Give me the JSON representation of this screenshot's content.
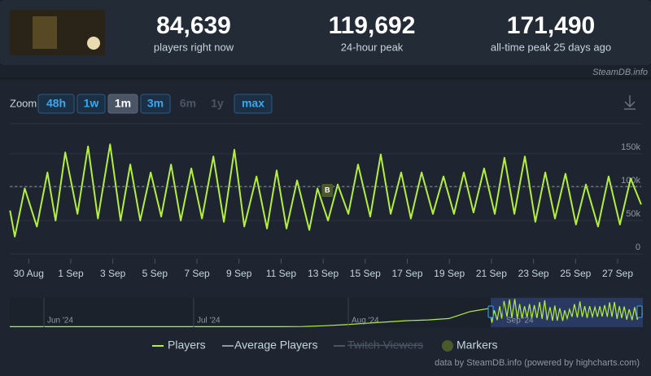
{
  "header": {
    "stats": [
      {
        "value": "84,639",
        "label": "players right now"
      },
      {
        "value": "119,692",
        "label": "24-hour peak"
      },
      {
        "value": "171,490",
        "label": "all-time peak 25 days ago"
      }
    ],
    "source": "SteamDB.info"
  },
  "zoom": {
    "label": "Zoom",
    "buttons": [
      "48h",
      "1w",
      "1m",
      "3m",
      "6m",
      "1y",
      "max"
    ],
    "active_index": 2,
    "disabled_indices": [
      4,
      5
    ]
  },
  "chart_data": {
    "type": "line",
    "x": [
      0.11,
      0.34,
      0.81,
      1.39,
      1.89,
      2.28,
      2.74,
      3.32,
      3.82,
      4.29,
      4.87,
      5.37,
      5.83,
      6.3,
      6.8,
      7.3,
      7.77,
      8.23,
      8.73,
      9.24,
      9.78,
      10.28,
      10.78,
      11.25,
      11.83,
      12.33,
      12.79,
      13.26,
      13.76,
      14.34,
      14.73,
      15.23,
      15.69,
      16.2,
      16.66,
      17.24,
      17.74,
      18.21,
      18.71,
      19.17,
      19.68,
      20.22,
      20.72,
      21.22,
      21.69,
      22.15,
      22.65,
      23.16,
      23.62,
      24.09,
      24.59,
      25.09,
      25.56,
      26.02,
      26.52,
      27.02,
      27.49,
      28.07,
      28.57,
      29.11,
      29.62,
      30.12
    ],
    "series": [
      {
        "name": "Players",
        "color": "#b4ee3f",
        "values": [
          65000,
          26000,
          98000,
          41000,
          122000,
          50000,
          152000,
          60000,
          161000,
          53000,
          164000,
          50000,
          134000,
          50000,
          122000,
          56000,
          134000,
          50000,
          128000,
          53000,
          146000,
          48000,
          156000,
          41000,
          116000,
          38000,
          125000,
          38000,
          110000,
          36000,
          98000,
          50000,
          104000,
          60000,
          134000,
          56000,
          149000,
          60000,
          122000,
          53000,
          122000,
          60000,
          116000,
          60000,
          122000,
          62000,
          128000,
          60000,
          144000,
          60000,
          146000,
          48000,
          122000,
          53000,
          120000,
          44000,
          104000,
          41000,
          116000,
          44000,
          113000,
          74000
        ]
      },
      {
        "name": "Average Players",
        "color": "#8f98a0",
        "dashed": true,
        "x": [
          0.11,
          30.12
        ],
        "values": [
          101000,
          101000
        ]
      },
      {
        "name": "Twitch Viewers",
        "color": "#4c5563",
        "hidden": true
      }
    ],
    "markers_legend": {
      "name": "Markers",
      "color": "#4b5a2a"
    },
    "markers": [
      {
        "label": "B",
        "x": 15.2,
        "y": 95000
      }
    ],
    "xlim": [
      0.1,
      30.2
    ],
    "ylim": [
      0,
      195000
    ],
    "xticks": [
      {
        "value": 1,
        "label": "30 Aug"
      },
      {
        "value": 3,
        "label": "1 Sep"
      },
      {
        "value": 5,
        "label": "3 Sep"
      },
      {
        "value": 7,
        "label": "5 Sep"
      },
      {
        "value": 9,
        "label": "7 Sep"
      },
      {
        "value": 11,
        "label": "9 Sep"
      },
      {
        "value": 13,
        "label": "11 Sep"
      },
      {
        "value": 15,
        "label": "13 Sep"
      },
      {
        "value": 17,
        "label": "15 Sep"
      },
      {
        "value": 19,
        "label": "17 Sep"
      },
      {
        "value": 21,
        "label": "19 Sep"
      },
      {
        "value": 23,
        "label": "21 Sep"
      },
      {
        "value": 25,
        "label": "23 Sep"
      },
      {
        "value": 27,
        "label": "25 Sep"
      },
      {
        "value": 29,
        "label": "27 Sep"
      }
    ],
    "yticks": [
      0,
      {
        "value": 50000,
        "label": "50k"
      },
      {
        "value": 100000,
        "label": "100k"
      },
      {
        "value": 150000,
        "label": "150k"
      }
    ],
    "grid": true,
    "navigator": {
      "labels": [
        "Jun '24",
        "Jul '24",
        "Aug '24",
        "Sep '24"
      ],
      "values": [
        3000,
        3000,
        3000,
        3000,
        3000,
        3000,
        3000,
        3000,
        3000,
        3000,
        3000,
        3000,
        3000,
        3000,
        4000,
        8000,
        14000,
        22000,
        30000,
        38000,
        42000,
        50000,
        90000,
        110000
      ]
    }
  },
  "credit": "data by SteamDB.info (powered by highcharts.com)"
}
